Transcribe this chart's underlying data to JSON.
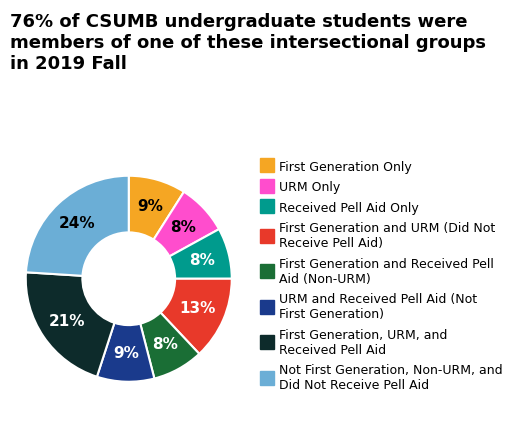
{
  "title": "76% of CSUMB undergraduate students were\nmembers of one of these intersectional groups\nin 2019 Fall",
  "slices": [
    9,
    8,
    8,
    13,
    8,
    9,
    21,
    24
  ],
  "colors": [
    "#F5A623",
    "#FF4DCD",
    "#009B8D",
    "#E8392A",
    "#1A6E35",
    "#1A3A8C",
    "#0D2B2B",
    "#6BAED6"
  ],
  "labels": [
    "First Generation Only",
    "URM Only",
    "Received Pell Aid Only",
    "First Generation and URM (Did Not\nReceive Pell Aid)",
    "First Generation and Received Pell\nAid (Non-URM)",
    "URM and Received Pell Aid (Not\nFirst Generation)",
    "First Generation, URM, and\nReceived Pell Aid",
    "Not First Generation, Non-URM, and\nDid Not Receive Pell Aid"
  ],
  "pct_labels": [
    "9%",
    "8%",
    "8%",
    "13%",
    "8%",
    "9%",
    "21%",
    "24%"
  ],
  "background_color": "#FFFFFF",
  "text_color": "#000000",
  "title_fontsize": 13,
  "pct_fontsize": 11,
  "legend_fontsize": 9
}
